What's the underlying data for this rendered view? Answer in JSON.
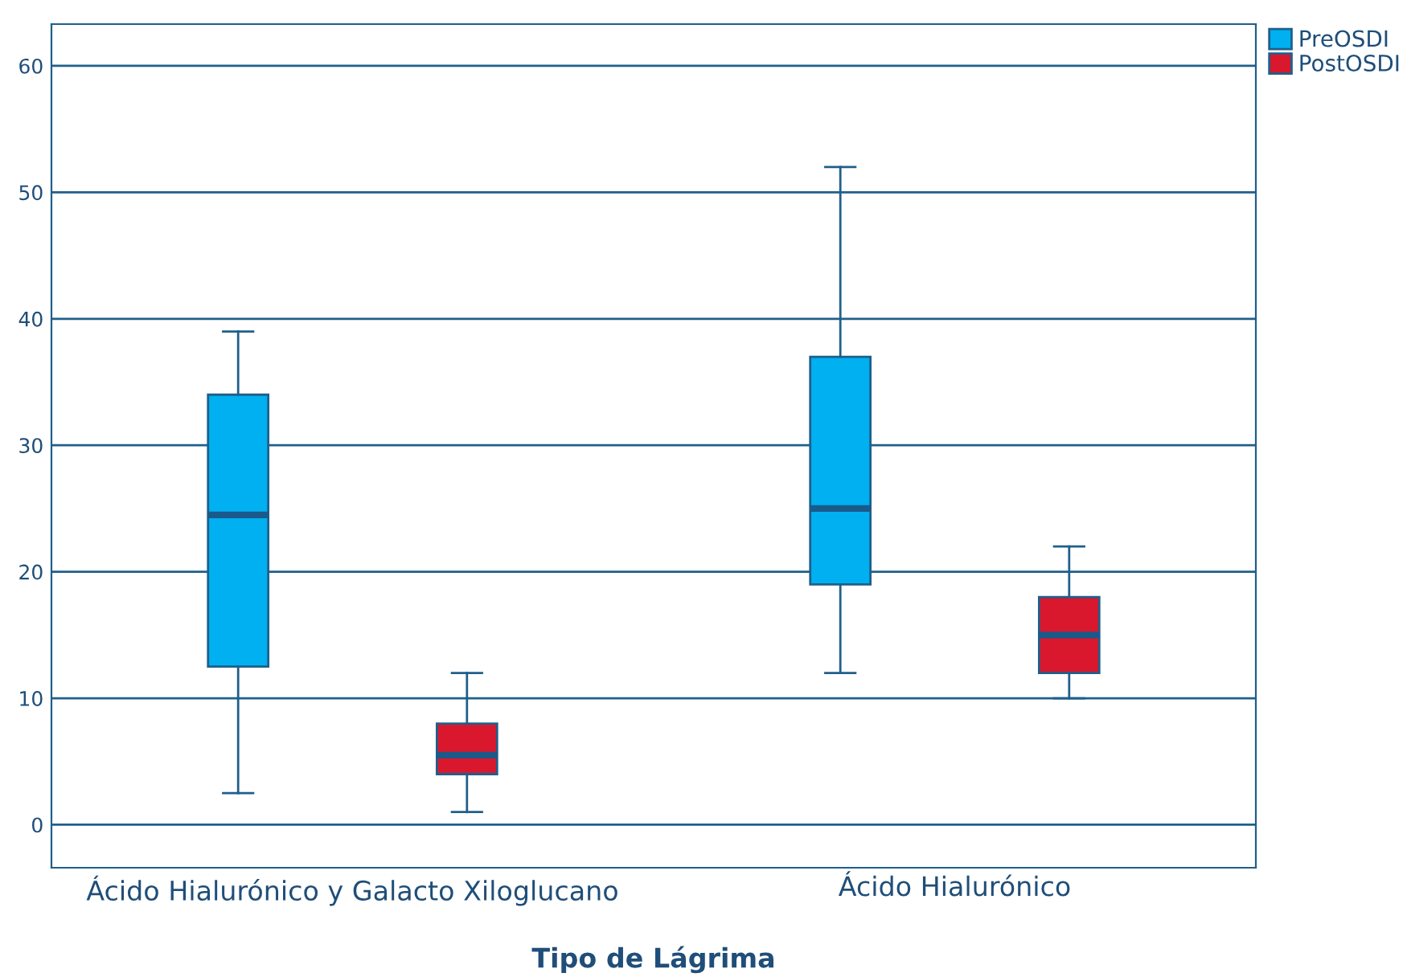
{
  "chart_data": {
    "type": "box",
    "xlabel": "Tipo de Lágrima",
    "categories": [
      "Ácido Hialurónico y Galacto Xiloglucano",
      "Ácido Hialurónico"
    ],
    "series": [
      {
        "name": "PreOSDI",
        "color": "#00b0f0",
        "boxes": [
          {
            "low": 2.5,
            "q1": 12.5,
            "median": 24.5,
            "q3": 34,
            "high": 39
          },
          {
            "low": 12,
            "q1": 19,
            "median": 25,
            "q3": 37,
            "high": 52
          }
        ]
      },
      {
        "name": "PostOSDI",
        "color": "#d9182e",
        "boxes": [
          {
            "low": 1,
            "q1": 4,
            "median": 5.5,
            "q3": 8,
            "high": 12
          },
          {
            "low": 10,
            "q1": 12,
            "median": 15,
            "q3": 18,
            "high": 22
          }
        ]
      }
    ],
    "ylim": [
      -3.4,
      63.3
    ],
    "yticks": [
      0,
      10,
      20,
      30,
      40,
      50,
      60
    ],
    "grid": "y",
    "legend": "top right"
  }
}
